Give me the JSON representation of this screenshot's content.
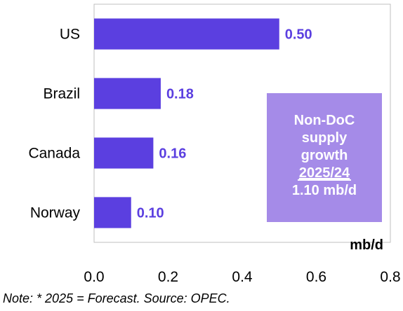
{
  "chart_data": {
    "type": "bar",
    "orientation": "horizontal",
    "categories": [
      "US",
      "Brazil",
      "Canada",
      "Norway"
    ],
    "values": [
      0.5,
      0.18,
      0.16,
      0.1
    ],
    "data_labels": [
      "0.50",
      "0.18",
      "0.16",
      "0.10"
    ],
    "xlim": [
      0.0,
      0.8
    ],
    "x_ticks": [
      "0.0",
      "0.2",
      "0.4",
      "0.6",
      "0.8"
    ],
    "unit": "mb/d",
    "grid": false,
    "bar_color": "#5b3fe0",
    "label_color": "#5b3fe0",
    "annotation": {
      "lines": [
        "Non-DoC",
        "supply",
        "growth",
        "2025/24",
        "1.10 mb/d"
      ],
      "underlined_line": "2025/24",
      "background": "#a58be8",
      "text_color": "#ffffff"
    }
  },
  "note": "Note: * 2025 = Forecast. Source: OPEC."
}
